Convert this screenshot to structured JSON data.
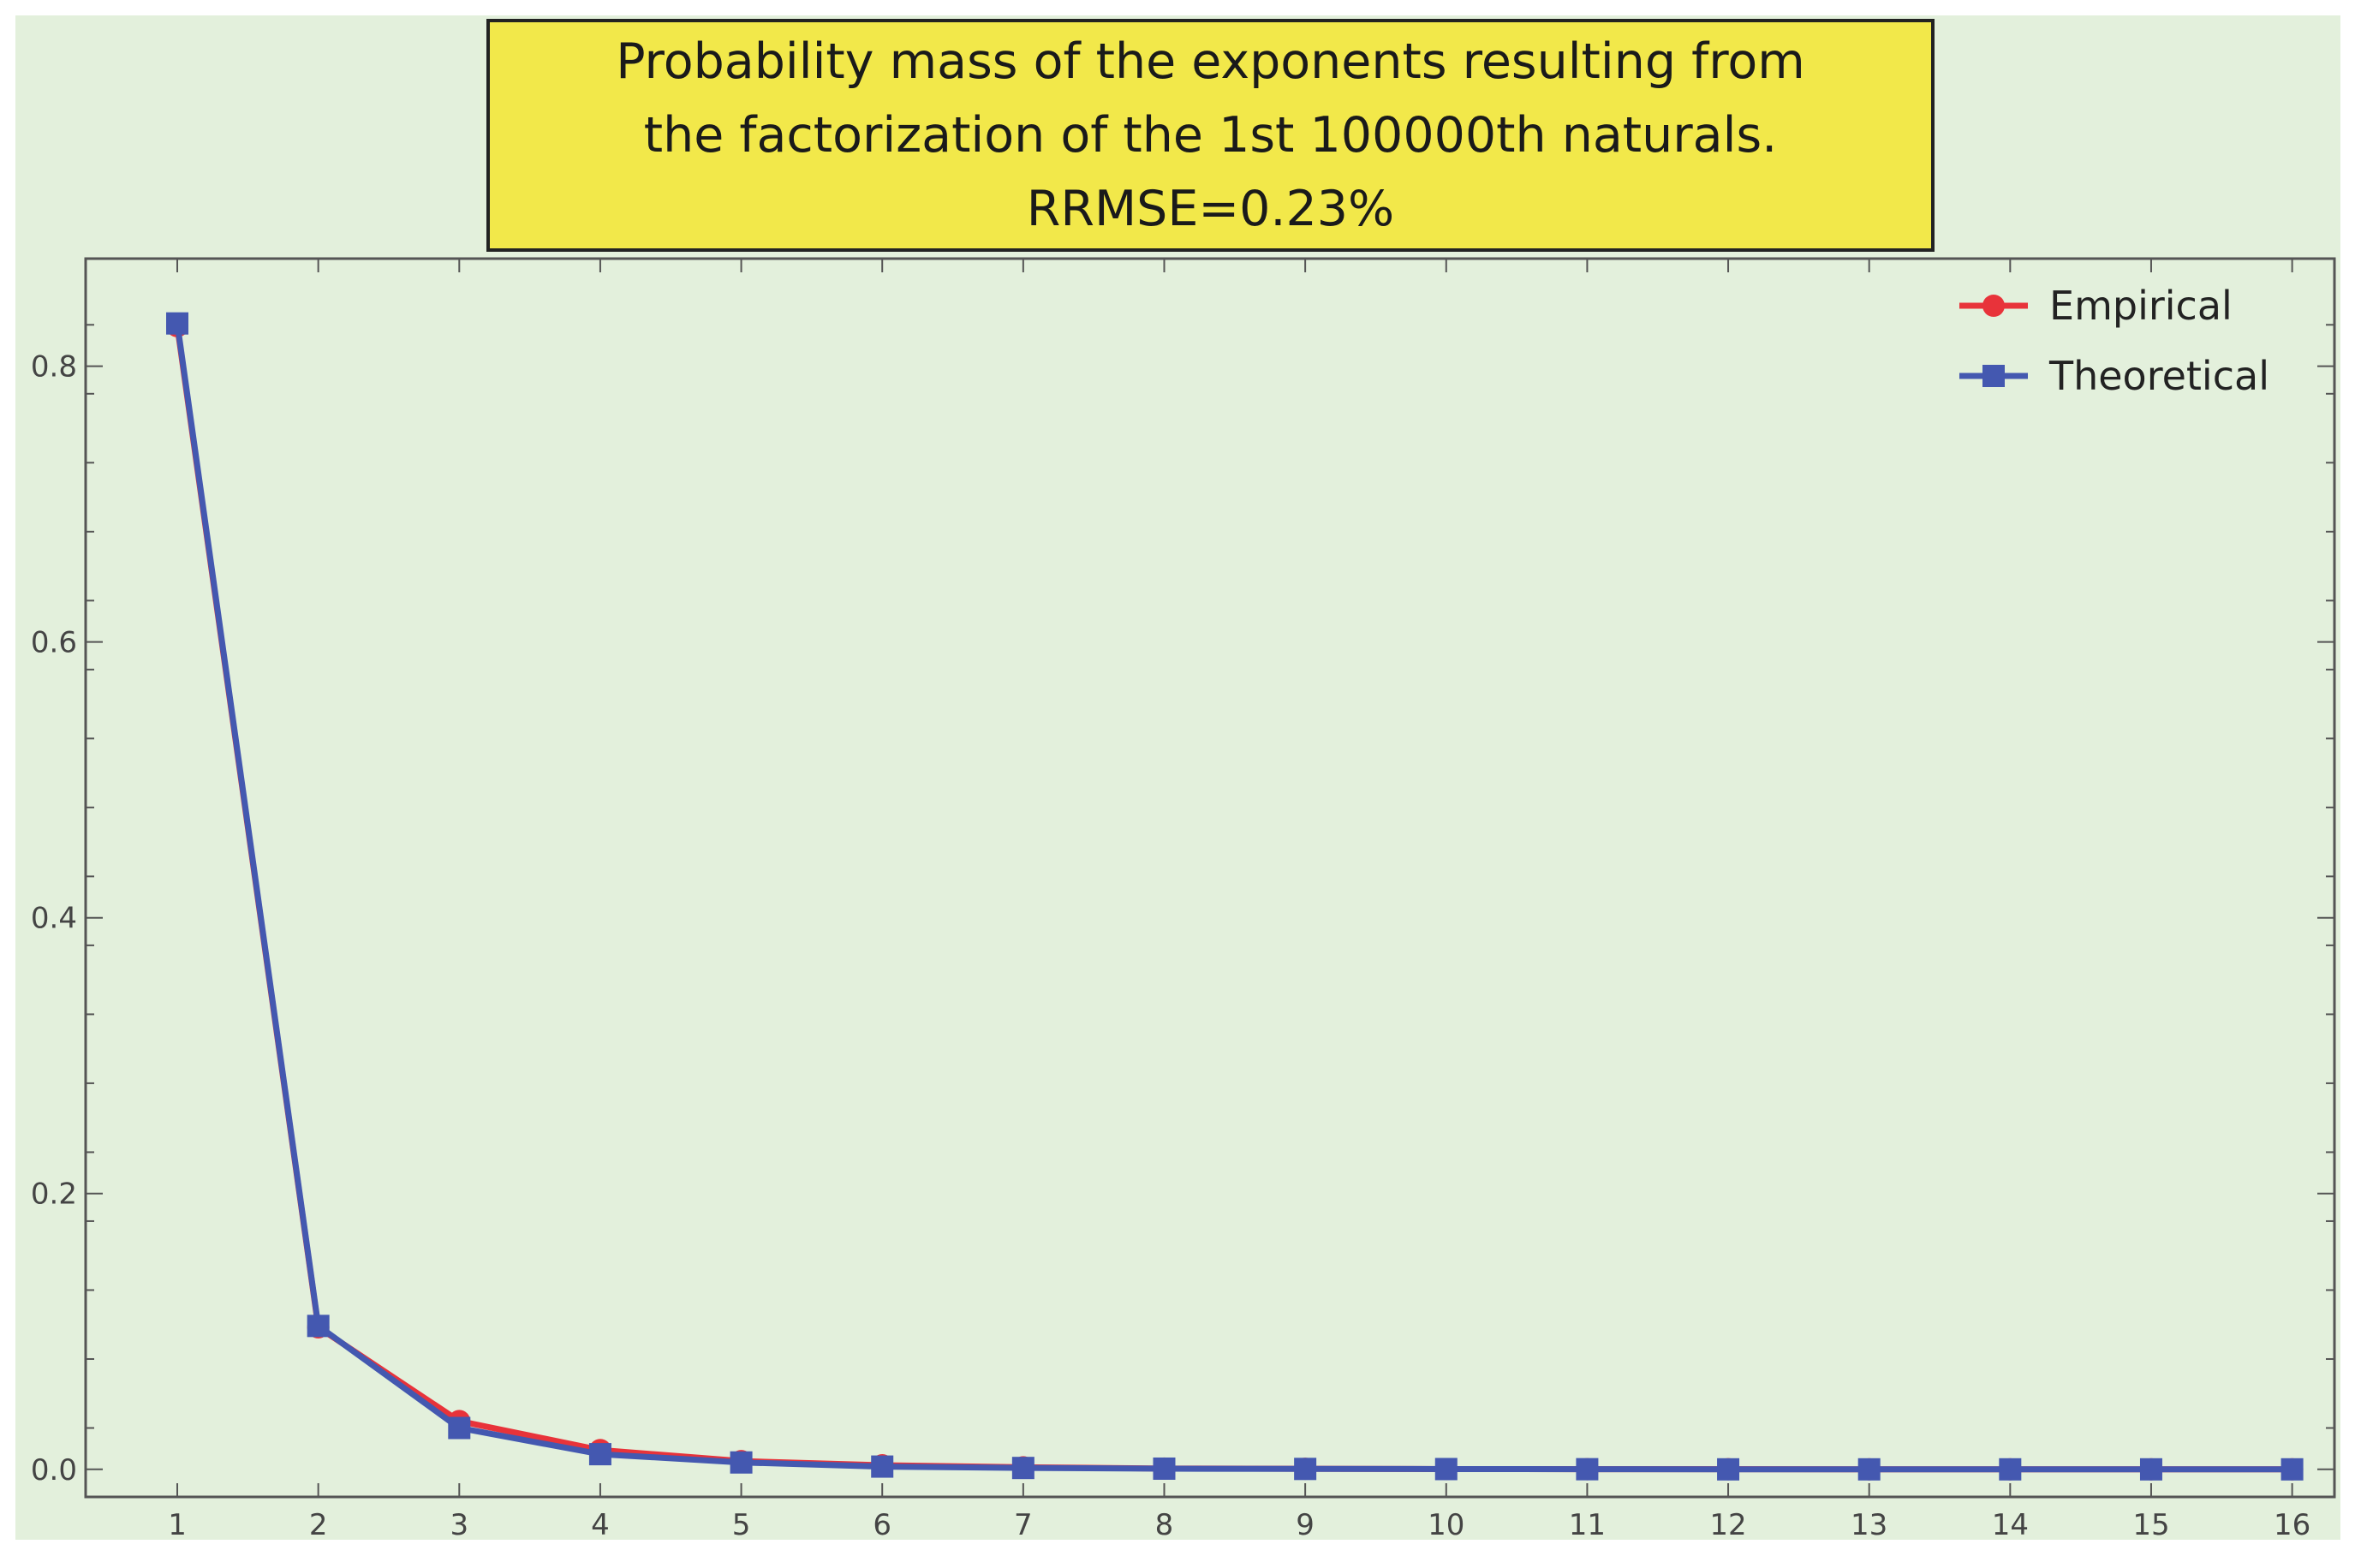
{
  "chart_data": {
    "type": "line",
    "title": "Probability mass of the exponents resulting from\nthe factorization of the 1st 100000th naturals.\nRRMSE=0.23%",
    "xlabel": "",
    "ylabel": "",
    "x": [
      1,
      2,
      3,
      4,
      5,
      6,
      7,
      8,
      9,
      10,
      11,
      12,
      13,
      14,
      15,
      16
    ],
    "xticks": [
      "1",
      "2",
      "3",
      "4",
      "5",
      "6",
      "7",
      "8",
      "9",
      "10",
      "11",
      "12",
      "13",
      "14",
      "15",
      "16"
    ],
    "xlim": [
      0.35,
      16.3
    ],
    "yticks": [
      "0.0",
      "0.2",
      "0.4",
      "0.6",
      "0.8"
    ],
    "ylim": [
      -0.02,
      0.878
    ],
    "grid": false,
    "legend_position": "top-right",
    "series": [
      {
        "name": "Empirical",
        "color": "#e8333a",
        "marker": "circle",
        "values": [
          0.829,
          0.103,
          0.035,
          0.014,
          0.006,
          0.003,
          0.0015,
          0.0006,
          0.0004,
          0.0002,
          0.0001,
          0.0001,
          0.0,
          0.0,
          0.0,
          0.0
        ]
      },
      {
        "name": "Theoretical",
        "color": "#4458b0",
        "marker": "square",
        "values": [
          0.831,
          0.104,
          0.03,
          0.011,
          0.005,
          0.002,
          0.001,
          0.0005,
          0.0003,
          0.0002,
          0.0001,
          0.0,
          0.0,
          0.0,
          0.0,
          0.0
        ]
      }
    ]
  }
}
